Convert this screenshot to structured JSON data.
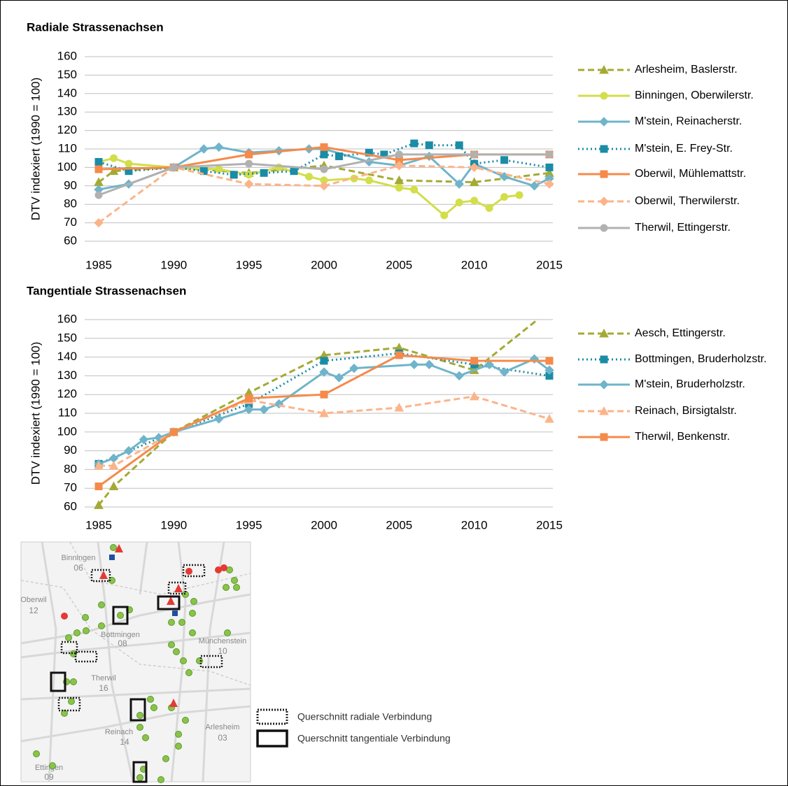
{
  "chart_data": [
    {
      "type": "line",
      "title": "Radiale Strassenachsen",
      "y_label": "DTV indexiert (1990 = 100)",
      "xlim": [
        1985,
        2015
      ],
      "xticks": [
        1985,
        1990,
        1995,
        2000,
        2005,
        2010,
        2015
      ],
      "ylim": [
        60,
        160
      ],
      "yticks": [
        60,
        70,
        80,
        90,
        100,
        110,
        120,
        130,
        140,
        150,
        160
      ],
      "grid": true,
      "legend": "right",
      "series": [
        {
          "name": "Arlesheim, Baslerstr.",
          "color": "#a4aa34",
          "dash": "dashed",
          "marker": "triangle",
          "x": [
            1985,
            1986,
            1990,
            1995,
            2000,
            2005,
            2010,
            2015
          ],
          "values": [
            92,
            98,
            100,
            97,
            101,
            93,
            92,
            97
          ]
        },
        {
          "name": "Binningen, Oberwilerstr.",
          "color": "#d2de4a",
          "dash": "solid",
          "marker": "circle",
          "x": [
            1985,
            1986,
            1987,
            1990,
            1993,
            1995,
            1997,
            1999,
            2000,
            2002,
            2003,
            2005,
            2006,
            2008,
            2009,
            2010,
            2011,
            2012,
            2013
          ],
          "values": [
            103,
            105,
            102,
            100,
            99,
            96,
            100,
            95,
            93,
            94,
            93,
            89,
            88,
            74,
            81,
            82,
            78,
            84,
            85
          ]
        },
        {
          "name": "M'stein, Reinacherstr.",
          "color": "#6fb4ca",
          "dash": "solid",
          "marker": "diamond",
          "x": [
            1985,
            1987,
            1990,
            1992,
            1993,
            1995,
            1997,
            1999,
            2000,
            2003,
            2005,
            2007,
            2009,
            2010,
            2012,
            2014,
            2015
          ],
          "values": [
            88,
            91,
            100,
            110,
            111,
            108,
            109,
            110,
            110,
            103,
            101,
            106,
            91,
            102,
            95,
            90,
            94
          ]
        },
        {
          "name": "M'stein, E. Frey-Str.",
          "color": "#1a8ca6",
          "dash": "dotted",
          "marker": "square",
          "x": [
            1985,
            1987,
            1990,
            1992,
            1994,
            1996,
            1998,
            2000,
            2001,
            2003,
            2004,
            2006,
            2007,
            2009,
            2010,
            2012,
            2015
          ],
          "values": [
            103,
            98,
            100,
            98,
            96,
            97,
            98,
            107,
            106,
            108,
            107,
            113,
            112,
            112,
            102,
            104,
            100
          ]
        },
        {
          "name": "Oberwil, Mühlemattstr.",
          "color": "#f58a4a",
          "dash": "solid",
          "marker": "square",
          "x": [
            1985,
            1990,
            1995,
            2000,
            2005,
            2010,
            2015
          ],
          "values": [
            99,
            100,
            107,
            111,
            104,
            107,
            107
          ]
        },
        {
          "name": "Oberwil, Therwilerstr.",
          "color": "#fbb48a",
          "dash": "dashed",
          "marker": "diamond",
          "x": [
            1985,
            1990,
            1995,
            2000,
            2005,
            2010,
            2015
          ],
          "values": [
            70,
            100,
            91,
            90,
            101,
            100,
            91
          ]
        },
        {
          "name": "Therwil, Ettingerstr.",
          "color": "#b1b1b1",
          "dash": "solid",
          "marker": "circle",
          "x": [
            1985,
            1990,
            1995,
            2000,
            2005,
            2010,
            2015
          ],
          "values": [
            85,
            100,
            102,
            99,
            107,
            107,
            107
          ]
        }
      ]
    },
    {
      "type": "line",
      "title": "Tangentiale Strassenachsen",
      "y_label": "DTV indexiert (1990 = 100)",
      "xlim": [
        1985,
        2015
      ],
      "xticks": [
        1985,
        1990,
        1995,
        2000,
        2005,
        2010,
        2015
      ],
      "ylim": [
        60,
        160
      ],
      "yticks": [
        60,
        70,
        80,
        90,
        100,
        110,
        120,
        130,
        140,
        150,
        160
      ],
      "grid": true,
      "legend": "right",
      "series": [
        {
          "name": "Aesch, Ettingerstr.",
          "color": "#a4aa34",
          "dash": "dashed",
          "marker": "triangle",
          "x": [
            1985,
            1986,
            1990,
            1995,
            2000,
            2005,
            2010,
            2015
          ],
          "values": [
            61,
            71,
            100,
            121,
            141,
            145,
            133,
            165
          ]
        },
        {
          "name": "Bottmingen, Bruderholzstr.",
          "color": "#1a8ca6",
          "dash": "dotted",
          "marker": "square",
          "x": [
            1985,
            1990,
            1995,
            2000,
            2005,
            2010,
            2015
          ],
          "values": [
            83,
            100,
            115,
            138,
            142,
            136,
            130
          ]
        },
        {
          "name": "M'stein, Bruderholzstr.",
          "color": "#6fb4ca",
          "dash": "solid",
          "marker": "diamond",
          "x": [
            1985,
            1986,
            1987,
            1988,
            1989,
            1990,
            1993,
            1995,
            1996,
            1997,
            2000,
            2001,
            2002,
            2006,
            2007,
            2009,
            2011,
            2012,
            2014,
            2015
          ],
          "values": [
            83,
            86,
            90,
            96,
            97,
            100,
            107,
            112,
            112,
            115,
            132,
            129,
            134,
            136,
            136,
            130,
            136,
            132,
            139,
            133
          ]
        },
        {
          "name": "Reinach, Birsigtalstr.",
          "color": "#fbb48a",
          "dash": "dashed",
          "marker": "triangle",
          "x": [
            1985,
            1986,
            1990,
            1995,
            2000,
            2005,
            2010,
            2015
          ],
          "values": [
            82,
            82,
            100,
            117,
            110,
            113,
            119,
            107
          ]
        },
        {
          "name": "Therwil, Benkenstr.",
          "color": "#f58a4a",
          "dash": "solid",
          "marker": "square",
          "x": [
            1985,
            1990,
            1995,
            2000,
            2005,
            2010,
            2015
          ],
          "values": [
            71,
            100,
            118,
            120,
            141,
            138,
            138
          ]
        }
      ]
    }
  ],
  "map": {
    "places": [
      {
        "name": "Binningen",
        "code": "06"
      },
      {
        "name": "Oberwil",
        "code": "12"
      },
      {
        "name": "Bottmingen",
        "code": "08"
      },
      {
        "name": "Münchenstein",
        "code": "10"
      },
      {
        "name": "Therwil",
        "code": "16"
      },
      {
        "name": "Reinach",
        "code": "14"
      },
      {
        "name": "Arlesheim",
        "code": "03"
      },
      {
        "name": "Ettingen",
        "code": "09"
      }
    ],
    "legend": [
      "Querschnitt radiale Verbindung",
      "Querschnitt tangentiale Verbindung"
    ]
  }
}
